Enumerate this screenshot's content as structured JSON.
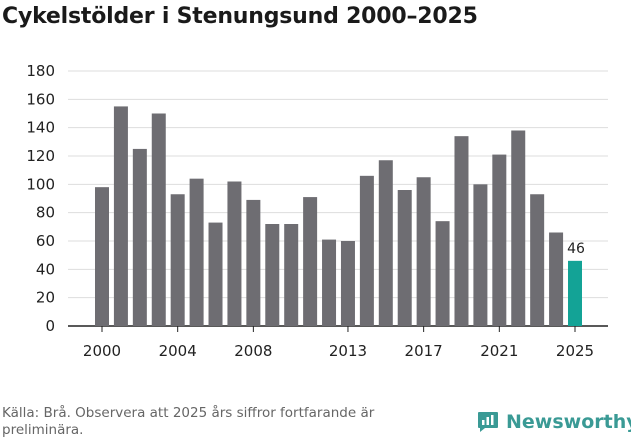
{
  "header": {
    "title": "Cykelstölder i Stenungsund 2000–2025"
  },
  "footer": {
    "source": "Källa: Brå. Observera att 2025 års siffror fortfarande är preliminära.",
    "brand": "Newsworthy"
  },
  "colors": {
    "bar": "#6e6d72",
    "highlight": "#13a396",
    "grid": "#dddddd",
    "axis": "#222222",
    "brand": "#3a9a95"
  },
  "chart_data": {
    "type": "bar",
    "title": "Cykelstölder i Stenungsund 2000–2025",
    "xlabel": "",
    "ylabel": "",
    "ylim": [
      0,
      180
    ],
    "yticks": [
      0,
      20,
      40,
      60,
      80,
      100,
      120,
      140,
      160,
      180
    ],
    "categories": [
      "2000",
      "2001",
      "2002",
      "2003",
      "2004",
      "2005",
      "2006",
      "2007",
      "2008",
      "2009",
      "2010",
      "2011",
      "2012",
      "2013",
      "2014",
      "2015",
      "2016",
      "2017",
      "2018",
      "2019",
      "2020",
      "2021",
      "2022",
      "2023",
      "2024",
      "2025"
    ],
    "values": [
      98,
      155,
      125,
      150,
      93,
      104,
      73,
      102,
      89,
      72,
      72,
      91,
      61,
      60,
      106,
      117,
      96,
      105,
      74,
      134,
      100,
      121,
      138,
      93,
      66,
      46
    ],
    "xtick_labels": [
      "2000",
      "2004",
      "2008",
      "2013",
      "2017",
      "2021",
      "2025"
    ],
    "highlight_category": "2025",
    "data_labels": [
      {
        "category": "2025",
        "text": "46"
      }
    ]
  }
}
